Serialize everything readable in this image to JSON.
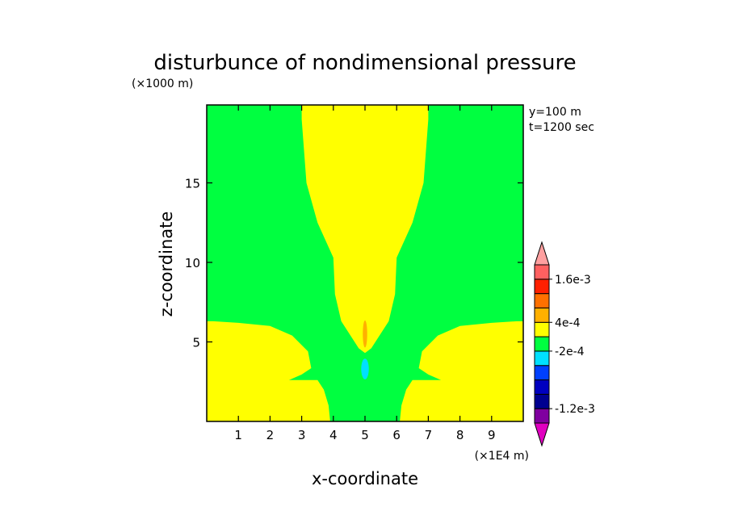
{
  "chart_data": {
    "type": "heatmap",
    "title": "disturbunce of nondimensional pressure",
    "xlabel": "x-coordinate",
    "ylabel": "z-coordinate",
    "x_unit": "(×1E4 m)",
    "y_unit": "(×1000 m)",
    "annotations": [
      "y=100 m",
      "t=1200 sec"
    ],
    "xlim": [
      0,
      10
    ],
    "ylim": [
      0,
      19.9
    ],
    "x_ticks": [
      1,
      2,
      3,
      4,
      5,
      6,
      7,
      8,
      9
    ],
    "y_ticks": [
      5,
      10,
      15
    ],
    "background_level_color": "#00ff40",
    "colorbar": {
      "levels": [
        {
          "color": "#e000c0"
        },
        {
          "color": "#8000a0"
        },
        {
          "color": "#000090"
        },
        {
          "color": "#0000c0"
        },
        {
          "color": "#0040ff"
        },
        {
          "color": "#00e0ff"
        },
        {
          "color": "#00ff40"
        },
        {
          "color": "#ffff00"
        },
        {
          "color": "#ffb000"
        },
        {
          "color": "#ff7000"
        },
        {
          "color": "#ff2000"
        },
        {
          "color": "#ff6060"
        },
        {
          "color": "#ffa0a0"
        }
      ],
      "labels": [
        {
          "text": "-1.2e-3",
          "level_boundary": 2
        },
        {
          "text": "-2e-4",
          "level_boundary": 6
        },
        {
          "text": "4e-4",
          "level_boundary": 8
        },
        {
          "text": "1.6e-3",
          "level_boundary": 11
        }
      ]
    },
    "regions": [
      {
        "name": "upper-plume",
        "color": "#ffff00",
        "polygon": [
          [
            3.0,
            19.9
          ],
          [
            7.0,
            19.9
          ],
          [
            7.0,
            19.0
          ],
          [
            6.85,
            15
          ],
          [
            6.5,
            12.5
          ],
          [
            6.0,
            10.3
          ],
          [
            5.95,
            8.0
          ],
          [
            5.75,
            6.3
          ],
          [
            5.2,
            4.6
          ],
          [
            5.0,
            4.3
          ],
          [
            4.8,
            4.6
          ],
          [
            4.25,
            6.3
          ],
          [
            4.05,
            8.0
          ],
          [
            4.0,
            10.3
          ],
          [
            3.5,
            12.5
          ],
          [
            3.15,
            15
          ],
          [
            3.0,
            19.0
          ]
        ]
      },
      {
        "name": "left-lobe",
        "color": "#ffff00",
        "polygon": [
          [
            0,
            0
          ],
          [
            3.9,
            0
          ],
          [
            3.85,
            1.0
          ],
          [
            3.7,
            2.0
          ],
          [
            3.5,
            2.6
          ],
          [
            2.6,
            2.6
          ],
          [
            3.0,
            2.95
          ],
          [
            3.3,
            3.35
          ],
          [
            3.2,
            4.4
          ],
          [
            2.7,
            5.4
          ],
          [
            2.0,
            6.0
          ],
          [
            1.0,
            6.2
          ],
          [
            0.2,
            6.3
          ],
          [
            0,
            6.3
          ]
        ]
      },
      {
        "name": "right-lobe",
        "color": "#ffff00",
        "polygon": [
          [
            10,
            0
          ],
          [
            6.1,
            0
          ],
          [
            6.15,
            1.0
          ],
          [
            6.3,
            2.0
          ],
          [
            6.5,
            2.6
          ],
          [
            7.4,
            2.6
          ],
          [
            7.0,
            2.95
          ],
          [
            6.7,
            3.35
          ],
          [
            6.8,
            4.4
          ],
          [
            7.3,
            5.4
          ],
          [
            8.0,
            6.0
          ],
          [
            9.0,
            6.2
          ],
          [
            9.8,
            6.3
          ],
          [
            10,
            6.3
          ]
        ]
      },
      {
        "name": "positive-core",
        "color": "#ffb000",
        "ellipse": {
          "cx": 5.0,
          "cy": 5.5,
          "rx": 0.07,
          "ry": 0.85
        }
      },
      {
        "name": "negative-core",
        "color": "#00e0ff",
        "ellipse": {
          "cx": 5.0,
          "cy": 3.3,
          "rx": 0.12,
          "ry": 0.65
        }
      }
    ]
  }
}
